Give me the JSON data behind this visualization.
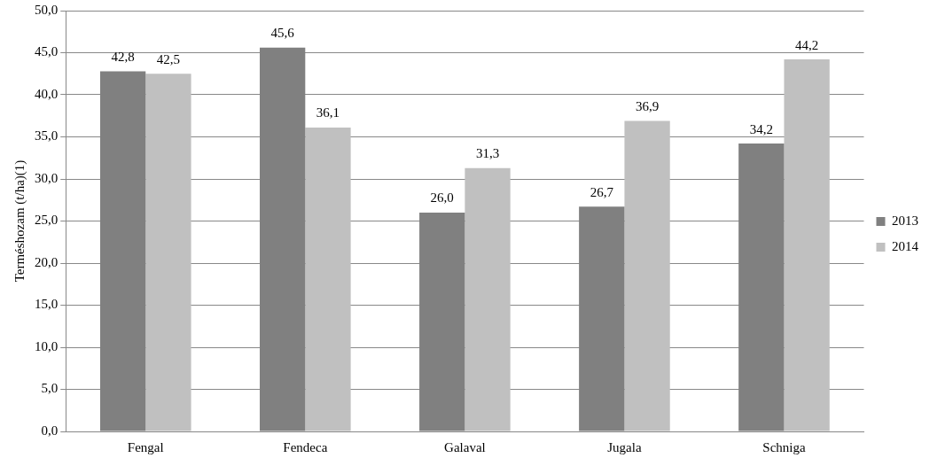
{
  "chart_data": {
    "type": "bar",
    "ylabel": "Terméshozam (t/ha)(1)",
    "categories": [
      "Fengal",
      "Fendeca",
      "Galaval",
      "Jugala",
      "Schniga"
    ],
    "series": [
      {
        "name": "2013",
        "color": "#808080",
        "values": [
          42.8,
          45.6,
          26.0,
          26.7,
          34.2
        ],
        "value_labels": [
          "42,8",
          "45,6",
          "26,0",
          "26,7",
          "34,2"
        ]
      },
      {
        "name": "2014",
        "color": "#c0c0c0",
        "values": [
          42.5,
          36.1,
          31.3,
          36.9,
          44.2
        ],
        "value_labels": [
          "42,5",
          "36,1",
          "31,3",
          "36,9",
          "44,2"
        ]
      }
    ],
    "ylim": [
      0,
      50
    ],
    "yticks": [
      {
        "value": 0,
        "label": "0,0"
      },
      {
        "value": 5,
        "label": "5,0"
      },
      {
        "value": 10,
        "label": "10,0"
      },
      {
        "value": 15,
        "label": "15,0"
      },
      {
        "value": 20,
        "label": "20,0"
      },
      {
        "value": 25,
        "label": "25,0"
      },
      {
        "value": 30,
        "label": "30,0"
      },
      {
        "value": 35,
        "label": "35,0"
      },
      {
        "value": 40,
        "label": "40,0"
      },
      {
        "value": 45,
        "label": "45,0"
      },
      {
        "value": 50,
        "label": "50,0"
      }
    ],
    "grid": "y",
    "legend": "right"
  }
}
